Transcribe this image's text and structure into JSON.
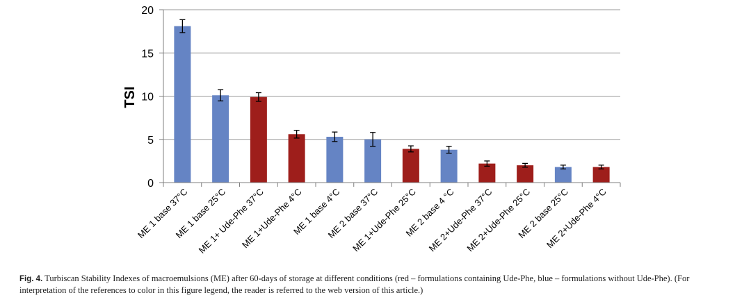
{
  "chart_data": {
    "type": "bar",
    "ylabel": "TSI",
    "ylim": [
      0,
      20
    ],
    "yticks": [
      0,
      5,
      10,
      15,
      20
    ],
    "grid": true,
    "categories": [
      "ME 1 base 37°C",
      "ME 1 base 25°C",
      "ME 1+ Ude-Phe 37°C",
      "ME 1+Ude-Phe 4°C",
      "ME 1 base 4°C",
      "ME 2 base 37°C",
      "ME 1+Ude-Phe 25°C",
      "ME 2 base 4 °C",
      "ME 2+Ude-Phe 37°C",
      "ME 2+Ude-Phe 25°C",
      "ME 2 base 25°C",
      "ME 2+Ude-Phe 4°C"
    ],
    "values": [
      18.1,
      10.1,
      9.9,
      5.6,
      5.3,
      5.0,
      3.9,
      3.8,
      2.2,
      2.0,
      1.8,
      1.8
    ],
    "errors": [
      0.75,
      0.65,
      0.5,
      0.45,
      0.55,
      0.8,
      0.35,
      0.4,
      0.3,
      0.22,
      0.22,
      0.22
    ],
    "groups": [
      "blue",
      "blue",
      "red",
      "red",
      "blue",
      "blue",
      "red",
      "blue",
      "red",
      "red",
      "blue",
      "red"
    ],
    "colors": {
      "blue": "#6584c4",
      "red": "#9e1e1b"
    }
  },
  "caption": {
    "label": "Fig. 4.",
    "text": "Turbiscan Stability Indexes of macroemulsions (ME) after 60-days of storage at different conditions (red – formulations containing Ude-Phe, blue – formulations without Ude-Phe). (For interpretation of the references to color in this figure legend, the reader is referred to the web version of this article.)"
  }
}
